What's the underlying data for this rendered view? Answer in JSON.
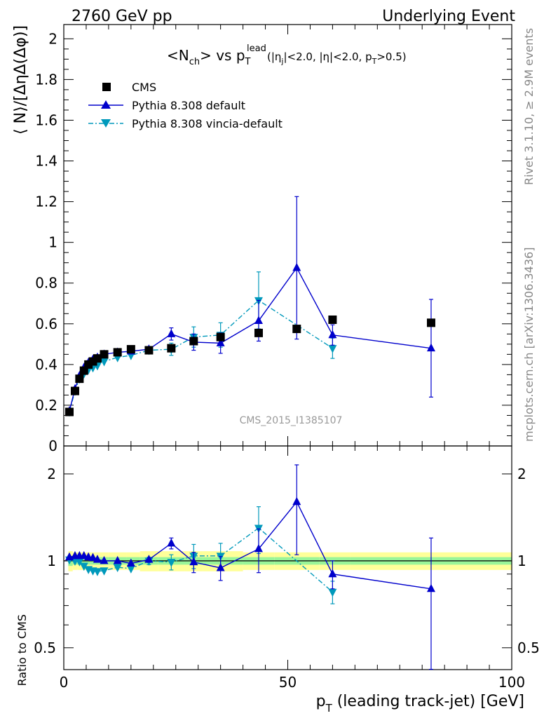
{
  "header": {
    "left": "2760 GeV pp",
    "right": "Underlying Event"
  },
  "side": {
    "rivet": "Rivet 3.1.10, ≥ 2.9M events",
    "mcplots": "mcplots.cern.ch [arXiv:1306.3436]"
  },
  "watermark": "CMS_2015_I1385107",
  "title": {
    "main": "<N",
    "main_sub": "ch",
    "main_rest": "> vs p",
    "pt_sup": "lead",
    "pt_sub": "T",
    "cuts_1": "(|η",
    "cuts_sub_j": "j",
    "cuts_2": "|<2.0, |η|<2.0, p",
    "cuts_sub_T": "T",
    "cuts_3": ">0.5)"
  },
  "axes": {
    "top_ylabel": "⟨ N⟩/[ΔηΔ(Δφ)]",
    "bottom_ylabel": "Ratio to CMS",
    "xlabel_p": "p",
    "xlabel_sub": "T",
    "xlabel_rest": " (leading track-jet) [GeV]"
  },
  "legend": [
    {
      "label": "CMS"
    },
    {
      "label": "Pythia 8.308 default"
    },
    {
      "label": "Pythia 8.308 vincia-default"
    }
  ],
  "colors": {
    "data": "#000000",
    "default": "#0000cc",
    "vincia": "#0099bb",
    "band_inner": "#99f599",
    "band_outer": "#ffff99"
  },
  "chart_data": [
    {
      "type": "scatter",
      "panel": "main",
      "xlim": [
        0,
        100
      ],
      "ylim": [
        0,
        2.07
      ],
      "yticks": [
        0,
        0.2,
        0.4,
        0.6,
        0.8,
        1,
        1.2,
        1.4,
        1.6,
        1.8,
        2
      ],
      "ytick_labels": [
        "0",
        "0.2",
        "0.4",
        "0.6",
        "0.8",
        "1",
        "1.2",
        "1.4",
        "1.6",
        "1.8",
        "2"
      ],
      "xticks": [
        0,
        50,
        100
      ],
      "xtick_labels": [
        "0",
        "50",
        "100"
      ],
      "series": [
        {
          "name": "CMS",
          "style": "square",
          "x": [
            1.25,
            2.5,
            3.5,
            4.5,
            5.5,
            6.5,
            7.5,
            9.0,
            12.0,
            15.0,
            19.0,
            24.0,
            29.0,
            35.0,
            43.5,
            52.0,
            60.0,
            82.0
          ],
          "y": [
            0.167,
            0.27,
            0.33,
            0.37,
            0.4,
            0.415,
            0.43,
            0.45,
            0.46,
            0.475,
            0.47,
            0.48,
            0.515,
            0.535,
            0.555,
            0.575,
            0.62,
            0.605
          ],
          "err": [
            0.005,
            0.005,
            0.005,
            0.005,
            0.005,
            0.005,
            0.005,
            0.005,
            0.005,
            0.005,
            0.005,
            0.005,
            0.005,
            0.005,
            0.005,
            0.005,
            0.005,
            0.005
          ]
        },
        {
          "name": "Pythia 8.308 default",
          "style": "triangle-up",
          "x": [
            1.25,
            2.5,
            3.5,
            4.5,
            5.5,
            6.5,
            7.5,
            9.0,
            12.0,
            15.0,
            19.0,
            24.0,
            29.0,
            35.0,
            43.5,
            52.0,
            60.0,
            82.0
          ],
          "y": [
            0.172,
            0.28,
            0.345,
            0.385,
            0.41,
            0.425,
            0.435,
            0.45,
            0.46,
            0.465,
            0.475,
            0.55,
            0.51,
            0.505,
            0.615,
            0.875,
            0.545,
            0.48
          ],
          "err": [
            0.01,
            0.01,
            0.01,
            0.01,
            0.01,
            0.01,
            0.01,
            0.01,
            0.01,
            0.01,
            0.01,
            0.03,
            0.04,
            0.05,
            0.1,
            0.35,
            0.05,
            0.24
          ]
        },
        {
          "name": "Pythia 8.308 vincia-default",
          "style": "triangle-down",
          "x": [
            1.25,
            2.5,
            3.5,
            4.5,
            5.5,
            6.5,
            7.5,
            9.0,
            12.0,
            15.0,
            19.0,
            24.0,
            29.0,
            35.0,
            43.5,
            60.0
          ],
          "y": [
            0.168,
            0.27,
            0.33,
            0.355,
            0.375,
            0.385,
            0.395,
            0.415,
            0.435,
            0.445,
            0.47,
            0.475,
            0.535,
            0.545,
            0.715,
            0.48
          ],
          "err": [
            0.01,
            0.01,
            0.01,
            0.01,
            0.01,
            0.01,
            0.01,
            0.01,
            0.01,
            0.01,
            0.015,
            0.03,
            0.05,
            0.06,
            0.14,
            0.05
          ]
        }
      ]
    },
    {
      "type": "scatter",
      "panel": "ratio",
      "xlim": [
        0,
        100
      ],
      "ylim": [
        0.42,
        2.5
      ],
      "yscale": "log",
      "yticks": [
        0.5,
        1,
        2
      ],
      "ytick_labels": [
        "0.5",
        "1",
        "2"
      ],
      "xticks": [
        0,
        50,
        100
      ],
      "xtick_labels": [
        "0",
        "50",
        "100"
      ],
      "ylabel": "Ratio to CMS",
      "reference": 1,
      "series": [
        {
          "name": "Pythia 8.308 default",
          "x": [
            1.25,
            2.5,
            3.5,
            4.5,
            5.5,
            6.5,
            7.5,
            9.0,
            12.0,
            15.0,
            19.0,
            24.0,
            29.0,
            35.0,
            43.5,
            52.0,
            60.0,
            82.0
          ],
          "y": [
            1.03,
            1.04,
            1.04,
            1.04,
            1.03,
            1.025,
            1.01,
            1.0,
            1.0,
            0.98,
            1.01,
            1.15,
            0.99,
            0.945,
            1.1,
            1.6,
            0.9,
            0.8
          ],
          "err": [
            0.02,
            0.02,
            0.02,
            0.02,
            0.02,
            0.02,
            0.02,
            0.02,
            0.02,
            0.02,
            0.02,
            0.05,
            0.08,
            0.09,
            0.19,
            0.55,
            0.1,
            0.4
          ]
        },
        {
          "name": "Pythia 8.308 vincia-default",
          "x": [
            1.25,
            2.5,
            3.5,
            4.5,
            5.5,
            6.5,
            7.5,
            9.0,
            12.0,
            15.0,
            19.0,
            24.0,
            29.0,
            35.0,
            43.5,
            60.0
          ],
          "y": [
            1.01,
            1.0,
            0.995,
            0.96,
            0.935,
            0.925,
            0.92,
            0.925,
            0.95,
            0.94,
            1.0,
            0.99,
            1.04,
            1.04,
            1.3,
            0.78
          ],
          "err": [
            0.02,
            0.02,
            0.02,
            0.02,
            0.02,
            0.02,
            0.02,
            0.02,
            0.02,
            0.02,
            0.03,
            0.06,
            0.1,
            0.11,
            0.24,
            0.07
          ]
        }
      ],
      "bands": {
        "x_edges": [
          1,
          2,
          3,
          4,
          5,
          6,
          7,
          8,
          10,
          14,
          17,
          21,
          27,
          31,
          40,
          47,
          57,
          64,
          100
        ],
        "inner": [
          0.04,
          0.03,
          0.03,
          0.03,
          0.03,
          0.03,
          0.03,
          0.03,
          0.03,
          0.03,
          0.03,
          0.03,
          0.03,
          0.03,
          0.03,
          0.03,
          0.03,
          0.03
        ],
        "outer": [
          0.08,
          0.07,
          0.07,
          0.07,
          0.07,
          0.07,
          0.07,
          0.07,
          0.07,
          0.07,
          0.08,
          0.08,
          0.08,
          0.08,
          0.07,
          0.07,
          0.07,
          0.07
        ]
      }
    }
  ]
}
